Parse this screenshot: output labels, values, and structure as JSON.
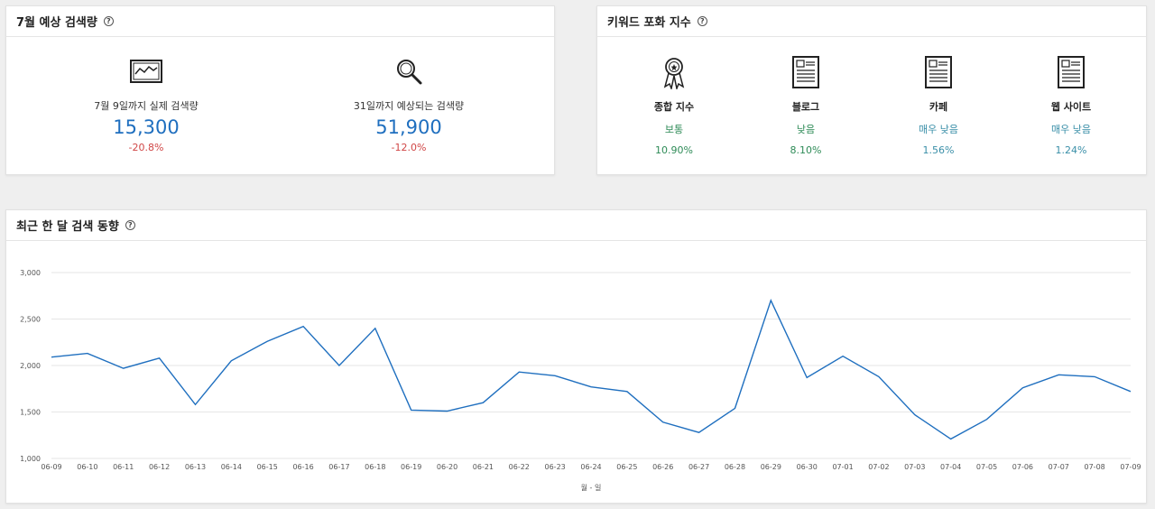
{
  "forecast": {
    "title": "7월 예상 검색량",
    "help": "?",
    "actual": {
      "label": "7월 9일까지 실제 검색량",
      "value": "15,300",
      "change": "-20.8%",
      "icon": "line-chart-icon"
    },
    "expected": {
      "label": "31일까지 예상되는 검색량",
      "value": "51,900",
      "change": "-12.0%",
      "icon": "magnifier-icon"
    }
  },
  "saturation": {
    "title": "키워드 포화 지수",
    "help": "?",
    "items": [
      {
        "label": "종합 지수",
        "level": "보통",
        "percent": "10.90%",
        "icon": "award-ribbon-icon"
      },
      {
        "label": "블로그",
        "level": "낮음",
        "percent": "8.10%",
        "icon": "document-icon"
      },
      {
        "label": "카페",
        "level": "매우 낮음",
        "percent": "1.56%",
        "icon": "document-icon"
      },
      {
        "label": "웹 사이트",
        "level": "매우 낮음",
        "percent": "1.24%",
        "icon": "document-icon"
      }
    ],
    "colors": {
      "green": "#2e8b57",
      "teal": "#3a8fa8",
      "value_blue": "#1f6fbf",
      "negative_red": "#d04646"
    }
  },
  "trend": {
    "title": "최근 한 달 검색 동향",
    "help": "?"
  },
  "chart_data": {
    "type": "line",
    "title": "최근 한 달 검색 동향",
    "xlabel": "월 - 일",
    "ylabel": "",
    "ylim": [
      1000,
      3000
    ],
    "yticks": [
      "1,000",
      "1,500",
      "2,000",
      "2,500",
      "3,000"
    ],
    "grid": true,
    "line_color": "#1f6fbf",
    "categories": [
      "06-09",
      "06-10",
      "06-11",
      "06-12",
      "06-13",
      "06-14",
      "06-15",
      "06-16",
      "06-17",
      "06-18",
      "06-19",
      "06-20",
      "06-21",
      "06-22",
      "06-23",
      "06-24",
      "06-25",
      "06-26",
      "06-27",
      "06-28",
      "06-29",
      "06-30",
      "07-01",
      "07-02",
      "07-03",
      "07-04",
      "07-05",
      "07-06",
      "07-07",
      "07-08",
      "07-09"
    ],
    "series": [
      {
        "values": [
          2090,
          2130,
          1970,
          2080,
          1580,
          2050,
          2260,
          2420,
          2000,
          2400,
          1520,
          1510,
          1600,
          1930,
          1890,
          1770,
          1720,
          1390,
          1280,
          1540,
          2700,
          1870,
          2100,
          1880,
          1470,
          1210,
          1420,
          1760,
          1900,
          1880,
          1720
        ]
      }
    ]
  }
}
